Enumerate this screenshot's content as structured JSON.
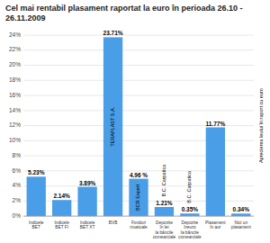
{
  "chart_data": {
    "type": "bar",
    "title": "Cel mai rentabil plasament raportat la euro în perioada 26.10 - 26.11.2009",
    "categories": [
      "Indicele\nBET",
      "Indicele\nBET FI",
      "Indicele\nBET XT",
      "BVB",
      "Fonduri\nmuatuale",
      "Depozite\nîn lei\nla băncile\ncomearciale",
      "Depozite\nîneuro\nla băncile\ncomearciale",
      "Plasament\nîn aur",
      "Nici un\nplasament"
    ],
    "values": [
      5.23,
      2.14,
      3.89,
      23.71,
      4.96,
      1.21,
      0.35,
      11.77,
      0.34
    ],
    "value_labels": [
      "5.23%",
      "2.14%",
      "3.89%",
      "23.71%",
      "4.96 %",
      "1.21%",
      "0.35%",
      "11.77%",
      "0.34%"
    ],
    "data_labels": true,
    "color": "#4a9ee8",
    "annotations": [
      {
        "text": "TERAPLAST S.A.",
        "bar": 3
      },
      {
        "text": "BCR Expert",
        "bar": 4
      },
      {
        "text": "B.C. Carpatica",
        "bar": 5
      },
      {
        "text": "B.C. Carpatica",
        "bar": 6
      },
      {
        "text": "Aprecierea leului în raport cu euro"
      }
    ],
    "ylim": [
      0,
      24
    ],
    "yticks": [
      {
        "value": 0,
        "label": "0%"
      },
      {
        "value": 2,
        "label": "2%"
      },
      {
        "value": 4,
        "label": "4%"
      },
      {
        "value": 6,
        "label": "6%"
      },
      {
        "value": 8,
        "label": "8%"
      },
      {
        "value": 10,
        "label": "10%"
      },
      {
        "value": 12,
        "label": "12%"
      },
      {
        "value": 14,
        "label": "14%"
      },
      {
        "value": 16,
        "label": "16%"
      },
      {
        "value": 18,
        "label": "18%"
      },
      {
        "value": 20,
        "label": "20%"
      },
      {
        "value": 22,
        "label": "22%"
      },
      {
        "value": 24,
        "label": "24%"
      }
    ],
    "grid": true
  }
}
